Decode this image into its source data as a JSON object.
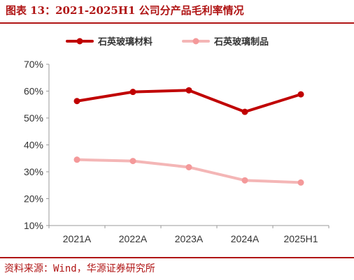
{
  "title": "图表 13：2021-2025H1 公司分产品毛利率情况",
  "source": "资料来源：Wind，华源证券研究所",
  "chart_data": {
    "type": "line",
    "categories": [
      "2021A",
      "2022A",
      "2023A",
      "2024A",
      "2025H1"
    ],
    "series": [
      {
        "name": "石英玻璃材料",
        "values": [
          56.3,
          59.7,
          60.3,
          52.3,
          58.8
        ],
        "color": "#c00000"
      },
      {
        "name": "石英玻璃制品",
        "values": [
          34.5,
          34.0,
          31.7,
          26.8,
          26.0
        ],
        "color": "#f4b6b6",
        "marker_color": "#f4999a"
      }
    ],
    "yticks": [
      "10%",
      "20%",
      "30%",
      "40%",
      "50%",
      "60%",
      "70%"
    ],
    "ylim": [
      10,
      70
    ],
    "legend_position": "top",
    "grid": false
  }
}
